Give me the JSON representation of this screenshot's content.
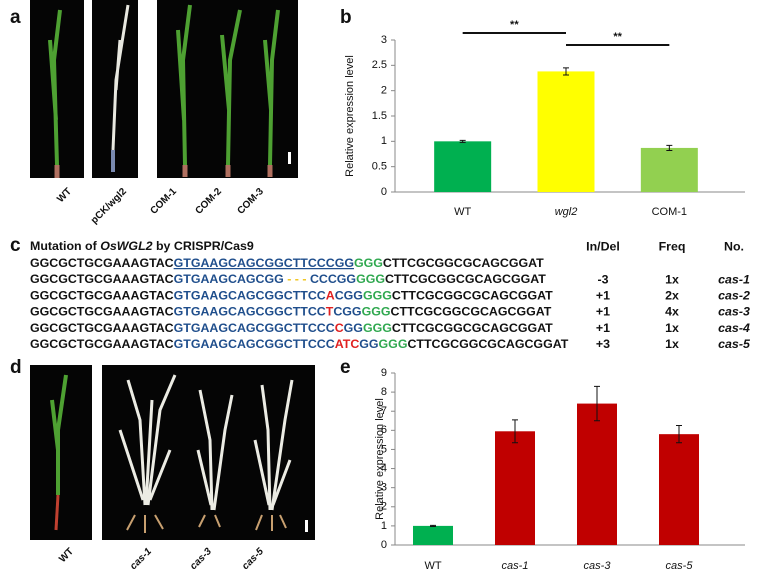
{
  "panel_labels": [
    "a",
    "b",
    "c",
    "d",
    "e"
  ],
  "photos_a": [
    "WT",
    "pCK/wgl2",
    "COM-1",
    "COM-2",
    "COM-3"
  ],
  "photos_d": [
    "WT",
    "cas-1",
    "cas-3",
    "cas-5"
  ],
  "crispr": {
    "title": [
      "Mutation of ",
      "OsWGL2",
      " by CRISPR/Cas9"
    ],
    "sequences": [
      [
        {
          "text": "GGCGCTGCGAAAGTAC",
          "color": "#111111"
        },
        {
          "text": "GTGAAGCAGCGGCTTCCCGG",
          "color": "#1f4e8c",
          "underline": true
        },
        {
          "text": "GGG",
          "color": "#2fa84f"
        },
        {
          "text": "CTTCGCGGCGCAGCGGAT",
          "color": "#111111"
        }
      ],
      [
        {
          "text": "GGCGCTGCGAAAGTAC",
          "color": "#111111"
        },
        {
          "text": "GTGAAGCAGCGG",
          "color": "#1f4e8c"
        },
        {
          "text": " - - - ",
          "color": "#f0c419"
        },
        {
          "text": "CCCGG",
          "color": "#1f4e8c"
        },
        {
          "text": "GGG",
          "color": "#2fa84f"
        },
        {
          "text": "CTTCGCGGCGCAGCGGAT",
          "color": "#111111"
        }
      ],
      [
        {
          "text": "GGCGCTGCGAAAGTAC",
          "color": "#111111"
        },
        {
          "text": "GTGAAGCAGCGGCTTCC",
          "color": "#1f4e8c"
        },
        {
          "text": "A",
          "color": "#e02020"
        },
        {
          "text": "CGG",
          "color": "#1f4e8c"
        },
        {
          "text": "GGG",
          "color": "#2fa84f"
        },
        {
          "text": "CTTCGCGGCGCAGCGGAT",
          "color": "#111111"
        }
      ],
      [
        {
          "text": "GGCGCTGCGAAAGTAC",
          "color": "#111111"
        },
        {
          "text": "GTGAAGCAGCGGCTTCC",
          "color": "#1f4e8c"
        },
        {
          "text": "T",
          "color": "#e02020"
        },
        {
          "text": "CGG",
          "color": "#1f4e8c"
        },
        {
          "text": "GGG",
          "color": "#2fa84f"
        },
        {
          "text": "CTTCGCGGCGCAGCGGAT",
          "color": "#111111"
        }
      ],
      [
        {
          "text": "GGCGCTGCGAAAGTAC",
          "color": "#111111"
        },
        {
          "text": "GTGAAGCAGCGGCTTCCC",
          "color": "#1f4e8c"
        },
        {
          "text": "C",
          "color": "#e02020"
        },
        {
          "text": "GG",
          "color": "#1f4e8c"
        },
        {
          "text": "GGG",
          "color": "#2fa84f"
        },
        {
          "text": "CTTCGCGGCGCAGCGGAT",
          "color": "#111111"
        }
      ],
      [
        {
          "text": "GGCGCTGCGAAAGTAC",
          "color": "#111111"
        },
        {
          "text": "GTGAAGCAGCGGCTTCCC",
          "color": "#1f4e8c"
        },
        {
          "text": "ATC",
          "color": "#e02020"
        },
        {
          "text": "GG",
          "color": "#1f4e8c"
        },
        {
          "text": "GGG",
          "color": "#2fa84f"
        },
        {
          "text": "CTTCGCGGCGCAGCGGAT",
          "color": "#111111"
        }
      ]
    ],
    "headers": [
      "In/Del",
      "Freq",
      "No."
    ],
    "rows": [
      [
        "-3",
        "1x",
        "cas-1"
      ],
      [
        "+1",
        "2x",
        "cas-2"
      ],
      [
        "+1",
        "4x",
        "cas-3"
      ],
      [
        "+1",
        "1x",
        "cas-4"
      ],
      [
        "+3",
        "1x",
        "cas-5"
      ]
    ]
  },
  "chart_data": [
    {
      "type": "bar",
      "y_label": "Relative expression  level",
      "categories": [
        "WT",
        "wgl2",
        "COM-1"
      ],
      "italic": [
        false,
        true,
        false
      ],
      "values": [
        1.0,
        2.38,
        0.87
      ],
      "errors": [
        0.02,
        0.07,
        0.05
      ],
      "colors": [
        "#00b050",
        "#ffff00",
        "#92d050"
      ],
      "ylim": [
        0,
        3
      ],
      "yticks": [
        0,
        0.5,
        1,
        1.5,
        2,
        2.5,
        3
      ],
      "annotations": [
        {
          "text": "**",
          "from": 0,
          "to": 1
        },
        {
          "text": "**",
          "from": 1,
          "to": 2
        }
      ]
    },
    {
      "type": "bar",
      "y_label": "Relative expression  level",
      "categories": [
        "WT",
        "cas-1",
        "cas-3",
        "cas-5"
      ],
      "italic": [
        false,
        true,
        true,
        true
      ],
      "values": [
        1.0,
        5.95,
        7.4,
        5.8
      ],
      "errors": [
        0.03,
        0.6,
        0.9,
        0.45
      ],
      "colors": [
        "#00b050",
        "#c00000",
        "#c00000",
        "#c00000"
      ],
      "ylim": [
        0,
        9
      ],
      "yticks": [
        0,
        1,
        2,
        3,
        4,
        5,
        6,
        7,
        8,
        9
      ]
    }
  ]
}
